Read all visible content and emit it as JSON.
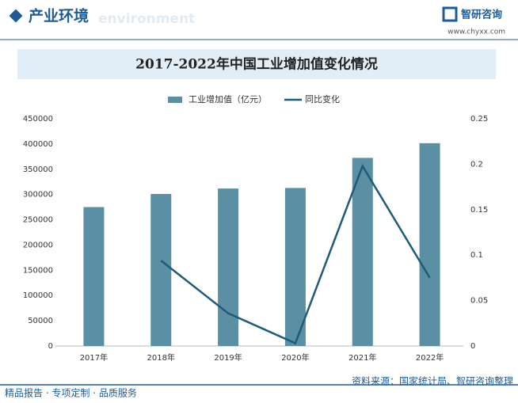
{
  "header": {
    "section": "产业环境",
    "watermark": "environment",
    "logo": "智研咨询",
    "url": "www.chyxx.com"
  },
  "chart_data": {
    "type": "bar_line",
    "title": "2017-2022年中国工业增加值变化情况",
    "categories": [
      "2017年",
      "2018年",
      "2019年",
      "2020年",
      "2021年",
      "2022年"
    ],
    "series": [
      {
        "name": "工业增加值（亿元）",
        "color": "#5b8fa3",
        "type": "bar",
        "values": [
          275119,
          301089,
          311859,
          312902,
          372575,
          401644
        ]
      },
      {
        "name": "同比变化",
        "color": "#1d5b7a",
        "type": "line",
        "axis": "y2",
        "values": [
          null,
          0.094,
          0.036,
          0.003,
          0.198,
          0.075
        ]
      }
    ],
    "ylim": [
      0,
      450000
    ],
    "yticks": [
      0,
      50000,
      100000,
      150000,
      200000,
      250000,
      300000,
      350000,
      400000,
      450000
    ],
    "y2lim": [
      0,
      0.25
    ],
    "y2ticks": [
      0,
      0.05,
      0.1,
      0.15,
      0.2,
      0.25
    ],
    "legend": "top"
  },
  "footer": {
    "left": "精品报告 · 专项定制 · 品质服务",
    "source": "资料来源：国家统计局、智研咨询整理"
  }
}
